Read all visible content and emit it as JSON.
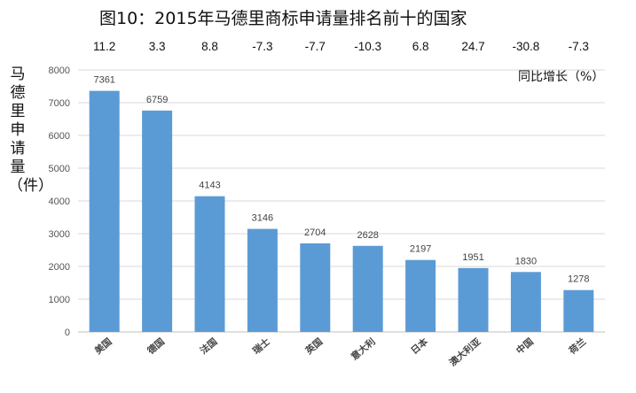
{
  "chart_data": {
    "type": "bar",
    "title": "图10：2015年马德里商标申请量排名前十的国家",
    "ylabel": "马德里申请量（件）",
    "growth_label": "同比增长（%）",
    "categories": [
      "美国",
      "德国",
      "法国",
      "瑞士",
      "英国",
      "意大利",
      "日本",
      "澳大利亚",
      "中国",
      "荷兰"
    ],
    "values": [
      7361,
      6759,
      4143,
      3146,
      2704,
      2628,
      2197,
      1951,
      1830,
      1278
    ],
    "growth": [
      "11.2",
      "3.3",
      "8.8",
      "-7.3",
      "-7.7",
      "-10.3",
      "6.8",
      "24.7",
      "-30.8",
      "-7.3"
    ],
    "ylim": [
      0,
      8000
    ],
    "yticks": [
      0,
      1000,
      2000,
      3000,
      4000,
      5000,
      6000,
      7000,
      8000
    ],
    "bar_color": "#5B9BD5",
    "grid": true
  }
}
